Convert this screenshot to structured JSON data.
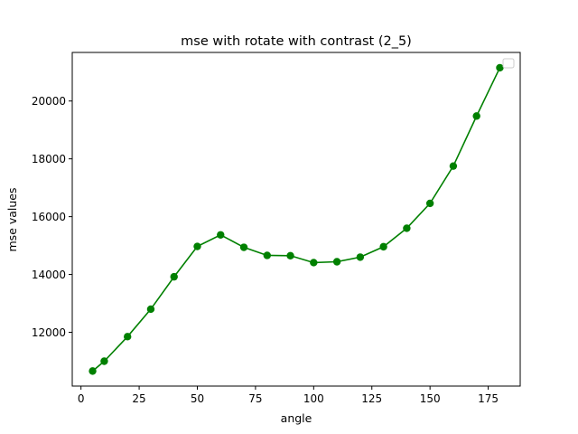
{
  "chart_data": {
    "type": "line",
    "title": "mse with rotate with contrast (2_5)",
    "xlabel": "angle",
    "ylabel": "mse values",
    "xlim": [
      -3.75,
      188.75
    ],
    "ylim": [
      10140,
      21680
    ],
    "xticks": [
      0,
      25,
      50,
      75,
      100,
      125,
      150,
      175
    ],
    "yticks": [
      12000,
      14000,
      16000,
      18000,
      20000
    ],
    "grid": false,
    "legend": "top-right (empty)",
    "series": [
      {
        "color": "#008000",
        "marker": "circle",
        "x": [
          5,
          10,
          20,
          30,
          40,
          50,
          60,
          70,
          80,
          90,
          100,
          110,
          120,
          130,
          140,
          150,
          160,
          170,
          180
        ],
        "y": [
          10660,
          11000,
          11850,
          12800,
          13920,
          14970,
          15370,
          14940,
          14660,
          14650,
          14410,
          14440,
          14600,
          14960,
          15600,
          16460,
          17750,
          19480,
          21150
        ]
      }
    ]
  }
}
